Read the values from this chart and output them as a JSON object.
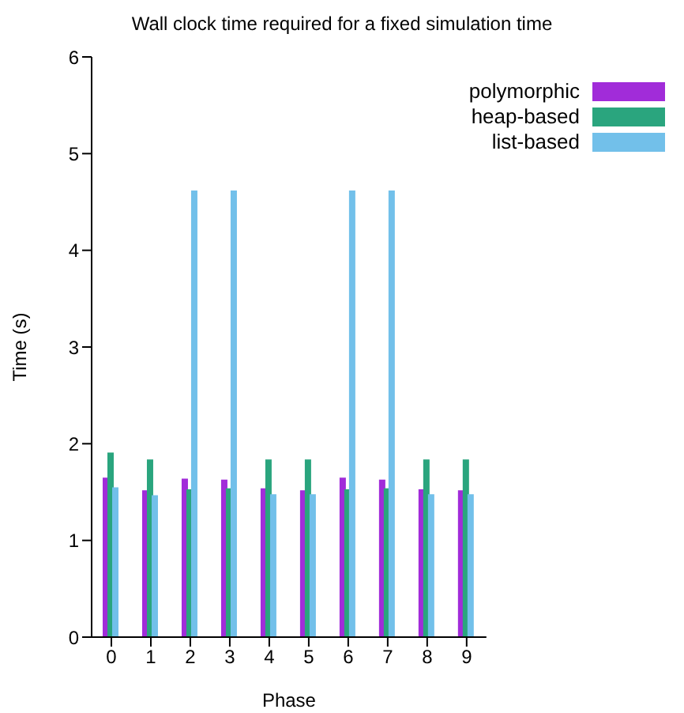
{
  "chart_data": {
    "type": "bar",
    "title": "Wall clock time required for a fixed simulation time",
    "xlabel": "Phase",
    "ylabel": "Time (s)",
    "categories": [
      "0",
      "1",
      "2",
      "3",
      "4",
      "5",
      "6",
      "7",
      "8",
      "9"
    ],
    "series": [
      {
        "name": "polymorphic",
        "color": "#a12cd9",
        "values": [
          1.64,
          1.51,
          1.63,
          1.62,
          1.53,
          1.51,
          1.64,
          1.62,
          1.52,
          1.51
        ]
      },
      {
        "name": "heap-based",
        "color": "#2aa57e",
        "values": [
          1.9,
          1.83,
          1.52,
          1.53,
          1.83,
          1.83,
          1.52,
          1.53,
          1.83,
          1.83
        ]
      },
      {
        "name": "list-based",
        "color": "#72c0ea",
        "values": [
          1.54,
          1.46,
          4.61,
          4.61,
          1.47,
          1.47,
          4.61,
          4.61,
          1.47,
          1.47
        ]
      }
    ],
    "ylim": [
      0,
      6
    ],
    "yticks": [
      0,
      1,
      2,
      3,
      4,
      5,
      6
    ],
    "grid": false,
    "legend": "top right"
  }
}
